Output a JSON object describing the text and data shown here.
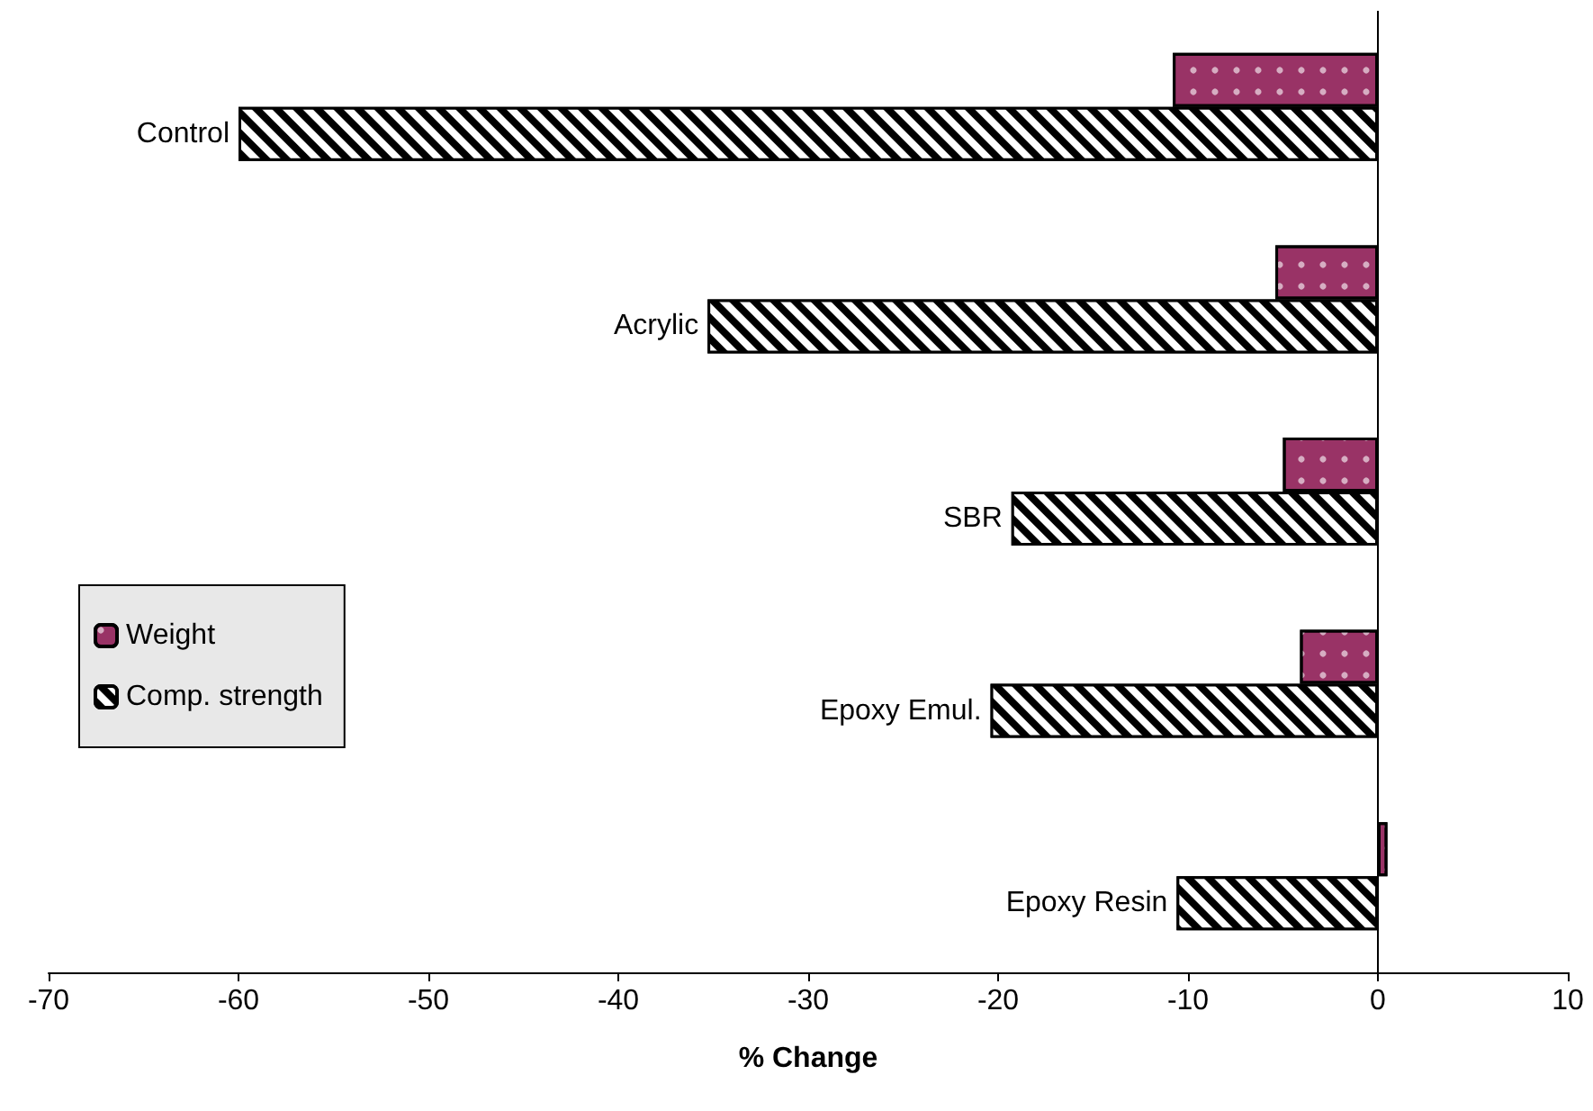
{
  "chart_data": {
    "type": "bar",
    "orientation": "horizontal",
    "xlabel": "% Change",
    "categories": [
      "Control",
      "Acrylic",
      "SBR",
      "Epoxy Emul.",
      "Epoxy Resin"
    ],
    "series": [
      {
        "name": "Weight",
        "color": "#993366",
        "values": [
          -10.8,
          -5.4,
          -5.0,
          -4.1,
          0.5
        ]
      },
      {
        "name": "Comp. strength",
        "color": "#000000",
        "values": [
          -60.0,
          -35.3,
          -19.3,
          -20.4,
          -10.6
        ]
      }
    ],
    "xlim": [
      -70,
      10
    ],
    "xticks": [
      -70,
      -60,
      -50,
      -40,
      -30,
      -20,
      -10,
      0,
      10
    ],
    "ref_lines": [
      {
        "axis": "x",
        "value": 0,
        "color": "#000000"
      }
    ],
    "grid": false,
    "legend": "left"
  }
}
